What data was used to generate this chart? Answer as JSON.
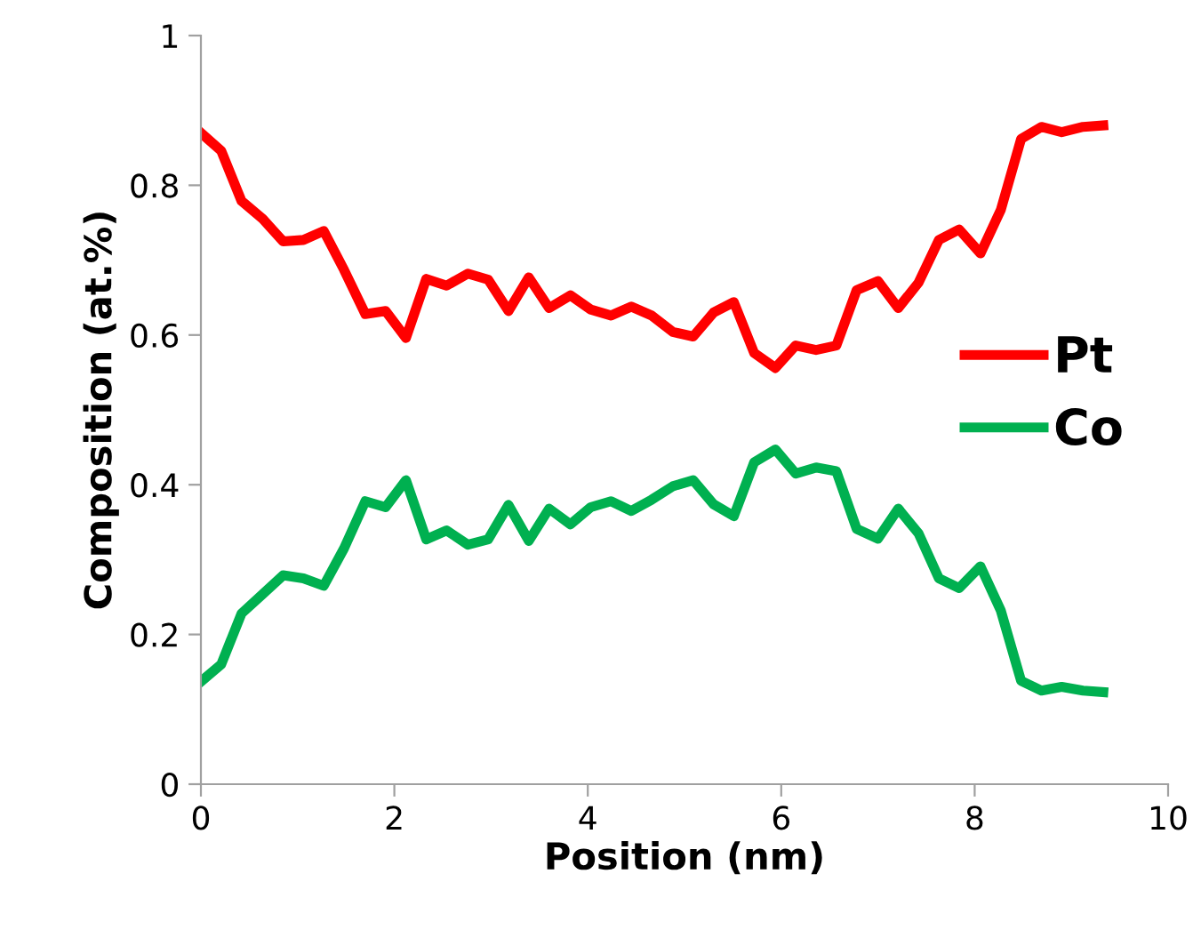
{
  "chart_data": {
    "type": "line",
    "xlabel": "Position (nm)",
    "ylabel": "Composition (at.%)",
    "x": [
      0,
      0.21,
      0.42,
      0.64,
      0.85,
      1.06,
      1.27,
      1.48,
      1.7,
      1.91,
      2.12,
      2.33,
      2.54,
      2.76,
      2.97,
      3.18,
      3.39,
      3.6,
      3.82,
      4.03,
      4.24,
      4.45,
      4.66,
      4.88,
      5.09,
      5.3,
      5.51,
      5.72,
      5.94,
      6.15,
      6.36,
      6.57,
      6.78,
      7.0,
      7.21,
      7.42,
      7.63,
      7.84,
      8.06,
      8.27,
      8.48,
      8.69,
      8.9,
      9.12,
      9.33
    ],
    "series": [
      {
        "name": "Pt",
        "color": "#ff0000",
        "values": [
          0.87,
          0.846,
          0.779,
          0.755,
          0.725,
          0.727,
          0.739,
          0.687,
          0.628,
          0.632,
          0.596,
          0.675,
          0.666,
          0.682,
          0.674,
          0.632,
          0.677,
          0.636,
          0.653,
          0.634,
          0.626,
          0.638,
          0.626,
          0.604,
          0.598,
          0.63,
          0.644,
          0.576,
          0.556,
          0.586,
          0.58,
          0.586,
          0.66,
          0.672,
          0.636,
          0.67,
          0.727,
          0.741,
          0.709,
          0.767,
          0.862,
          0.878,
          0.871,
          0.878,
          0.88
        ]
      },
      {
        "name": "Co",
        "color": "#00b050",
        "values": [
          0.137,
          0.16,
          0.228,
          0.254,
          0.279,
          0.275,
          0.265,
          0.315,
          0.378,
          0.37,
          0.406,
          0.327,
          0.339,
          0.32,
          0.327,
          0.373,
          0.325,
          0.368,
          0.347,
          0.37,
          0.378,
          0.365,
          0.38,
          0.398,
          0.406,
          0.374,
          0.358,
          0.43,
          0.447,
          0.415,
          0.423,
          0.418,
          0.341,
          0.328,
          0.368,
          0.335,
          0.275,
          0.262,
          0.291,
          0.232,
          0.138,
          0.125,
          0.13,
          0.125,
          0.123
        ]
      }
    ],
    "xlim": [
      0,
      10
    ],
    "xticks": [
      0,
      2,
      4,
      6,
      8,
      10
    ],
    "ylim": [
      0,
      1
    ],
    "yticks": [
      0,
      0.2,
      0.4,
      0.6,
      0.8,
      1
    ],
    "legend": "right",
    "marker": "none",
    "line_style": "solid",
    "grid": false
  }
}
